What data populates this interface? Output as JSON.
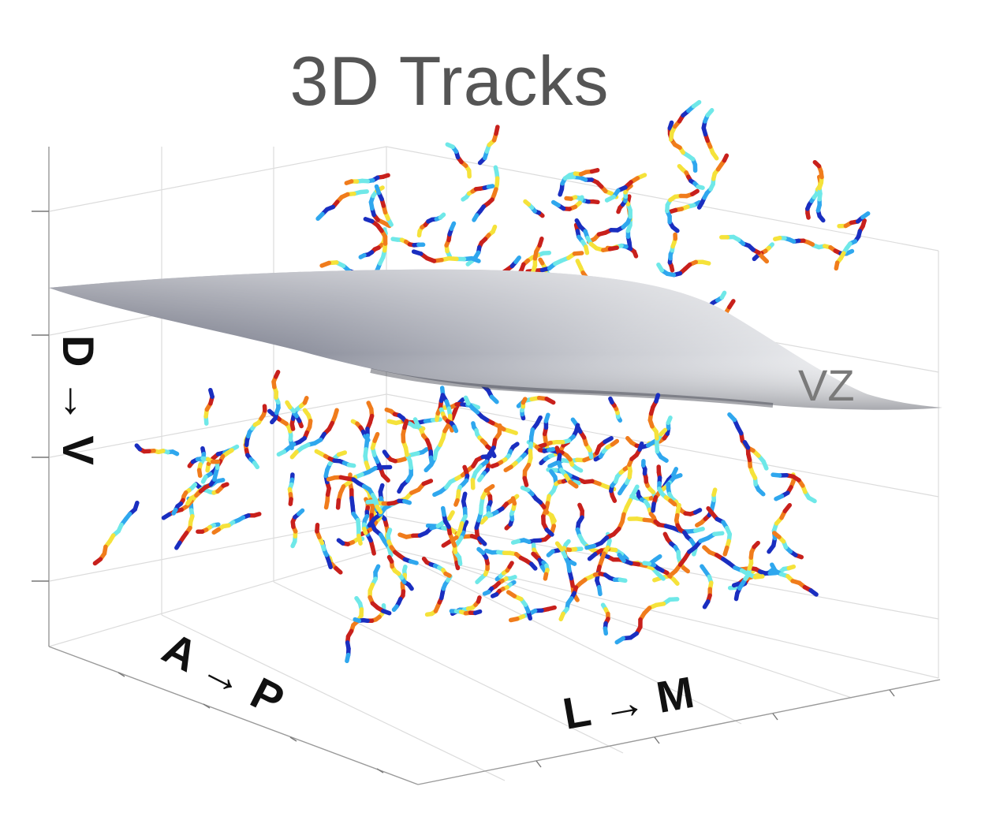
{
  "chart_data": {
    "type": "scatter",
    "title": "3D Tracks",
    "axes": {
      "x": "L → M",
      "y": "A → P",
      "z": "D → V"
    },
    "surface_label": "VZ",
    "grid": true,
    "colormap": [
      "#1a2ec0",
      "#2fa7ee",
      "#6fe8e8",
      "#f5e23a",
      "#f07c1c",
      "#c8201c"
    ],
    "surface_color": "#6e7180"
  }
}
